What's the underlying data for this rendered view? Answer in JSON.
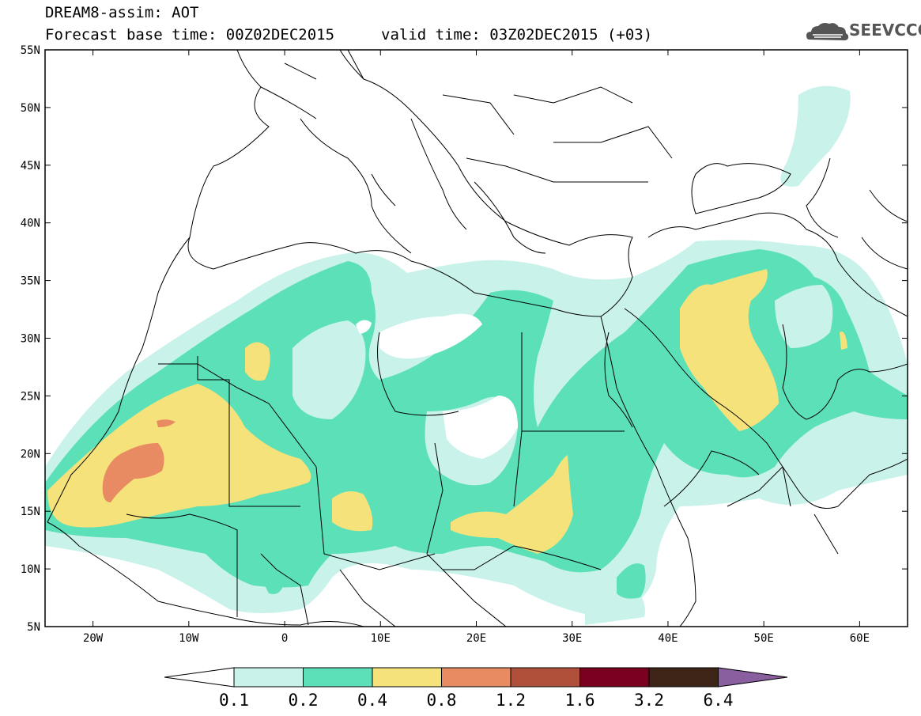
{
  "header": {
    "line1": "DREAM8-assim: AOT",
    "line2": "Forecast base time: 00Z02DEC2015",
    "line2b": "valid time: 03Z02DEC2015 (+03)",
    "logo_text": "SEEVCCC"
  },
  "map": {
    "lon_range": [
      -25,
      65
    ],
    "lat_range": [
      5,
      55
    ],
    "x_ticks": [
      {
        "lon": -20,
        "label": "20W"
      },
      {
        "lon": -10,
        "label": "10W"
      },
      {
        "lon": 0,
        "label": "0"
      },
      {
        "lon": 10,
        "label": "10E"
      },
      {
        "lon": 20,
        "label": "20E"
      },
      {
        "lon": 30,
        "label": "30E"
      },
      {
        "lon": 40,
        "label": "40E"
      },
      {
        "lon": 50,
        "label": "50E"
      },
      {
        "lon": 60,
        "label": "60E"
      }
    ],
    "y_ticks": [
      {
        "lat": 55,
        "label": "55N"
      },
      {
        "lat": 50,
        "label": "50N"
      },
      {
        "lat": 45,
        "label": "45N"
      },
      {
        "lat": 40,
        "label": "40N"
      },
      {
        "lat": 35,
        "label": "35N"
      },
      {
        "lat": 30,
        "label": "30N"
      },
      {
        "lat": 25,
        "label": "25N"
      },
      {
        "lat": 20,
        "label": "20N"
      },
      {
        "lat": 15,
        "label": "15N"
      },
      {
        "lat": 10,
        "label": "10N"
      },
      {
        "lat": 5,
        "label": "5N"
      }
    ]
  },
  "colorbar": {
    "levels": [
      "0.1",
      "0.2",
      "0.4",
      "0.8",
      "1.2",
      "1.6",
      "3.2",
      "6.4"
    ],
    "colors": [
      "#ffffff",
      "#c9f2ea",
      "#5ce0b8",
      "#f5e27a",
      "#e88a62",
      "#b0503a",
      "#7a0020",
      "#3d2416",
      "#8a5fa0"
    ]
  }
}
